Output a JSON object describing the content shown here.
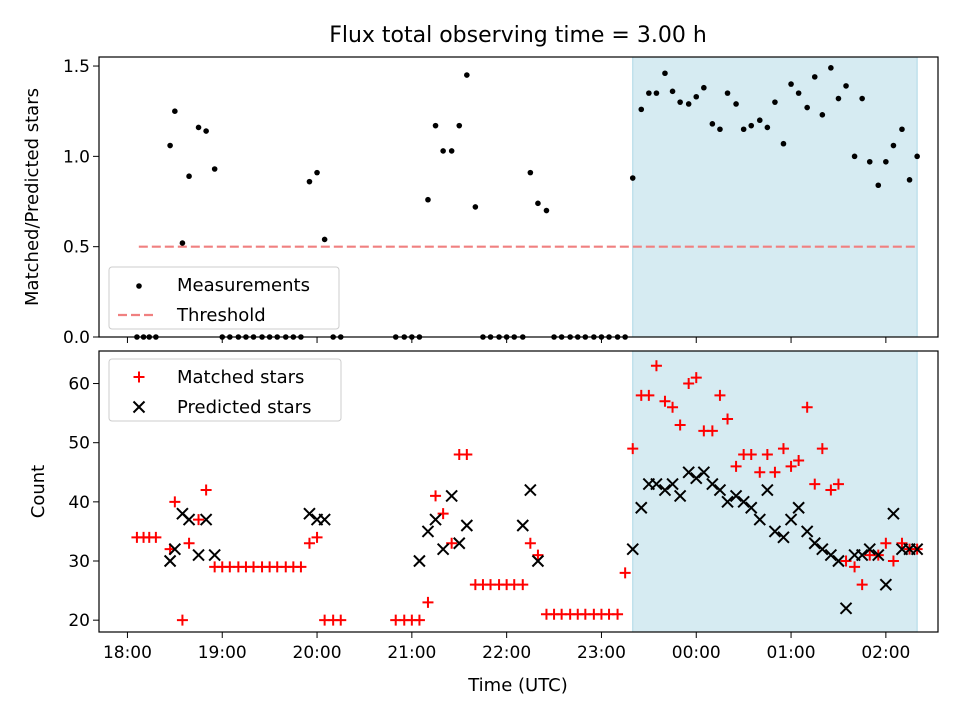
{
  "chart_data": [
    {
      "type": "scatter",
      "title": "Flux total observing time = 3.00 h",
      "ylabel": "Matched/Predicted stars",
      "xlabel": "",
      "ylim": [
        0,
        1.55
      ],
      "yticks": [
        "0.0",
        "0.5",
        "1.0",
        "1.5"
      ],
      "xticks": [
        "18:00",
        "19:00",
        "20:00",
        "21:00",
        "22:00",
        "23:00",
        "00:00",
        "01:00",
        "02:00"
      ],
      "x_range_hours": [
        17.7,
        26.55
      ],
      "highlight_span_hours": [
        23.33,
        26.33
      ],
      "threshold": 0.5,
      "threshold_span_hours": [
        18.12,
        26.33
      ],
      "legend_position": "lower left",
      "series": [
        {
          "name": "Measurements",
          "color": "#000000",
          "marker": "dot",
          "x": [
            18.1,
            18.17,
            18.23,
            18.3,
            18.45,
            18.5,
            18.58,
            18.65,
            18.75,
            18.83,
            18.92,
            19.0,
            19.08,
            19.17,
            19.25,
            19.33,
            19.42,
            19.5,
            19.58,
            19.67,
            19.75,
            19.83,
            19.92,
            20.0,
            20.08,
            20.17,
            20.25,
            20.83,
            20.92,
            21.0,
            21.08,
            21.17,
            21.25,
            21.33,
            21.42,
            21.5,
            21.58,
            21.67,
            21.75,
            21.83,
            21.92,
            22.0,
            22.08,
            22.17,
            22.25,
            22.33,
            22.42,
            22.5,
            22.58,
            22.67,
            22.75,
            22.83,
            22.92,
            23.0,
            23.08,
            23.17,
            23.25,
            23.33,
            23.42,
            23.5,
            23.58,
            23.67,
            23.75,
            23.83,
            23.92,
            24.0,
            24.08,
            24.17,
            24.25,
            24.33,
            24.42,
            24.5,
            24.58,
            24.67,
            24.75,
            24.83,
            24.92,
            25.0,
            25.08,
            25.17,
            25.25,
            25.33,
            25.42,
            25.5,
            25.58,
            25.67,
            25.75,
            25.83,
            25.92,
            26.0,
            26.08,
            26.17,
            26.25,
            26.33
          ],
          "y": [
            0,
            0,
            0,
            0,
            1.06,
            1.25,
            0.52,
            0.89,
            1.16,
            1.14,
            0.93,
            0,
            0,
            0,
            0,
            0,
            0,
            0,
            0,
            0,
            0,
            0,
            0.86,
            0.91,
            0.54,
            0,
            0,
            0,
            0,
            0,
            0,
            0.76,
            1.17,
            1.03,
            1.03,
            1.17,
            1.45,
            0.72,
            0,
            0,
            0,
            0,
            0,
            0,
            0.91,
            0.74,
            0.7,
            0,
            0,
            0,
            0,
            0,
            0,
            0,
            0,
            0,
            0,
            0.88,
            1.26,
            1.35,
            1.35,
            1.46,
            1.36,
            1.3,
            1.29,
            1.33,
            1.38,
            1.18,
            1.15,
            1.35,
            1.29,
            1.15,
            1.17,
            1.2,
            1.16,
            1.3,
            1.07,
            1.4,
            1.35,
            1.27,
            1.44,
            1.23,
            1.49,
            1.32,
            1.39,
            1.0,
            1.32,
            0.97,
            0.84,
            0.97,
            1.06,
            1.15,
            0.87,
            1.0
          ]
        },
        {
          "name": "Threshold",
          "color": "#f08080",
          "style": "dashed"
        }
      ]
    },
    {
      "type": "scatter",
      "title": "",
      "ylabel": "Count",
      "xlabel": "Time (UTC)",
      "ylim": [
        18,
        65.5
      ],
      "yticks": [
        "20",
        "30",
        "40",
        "50",
        "60"
      ],
      "xticks": [
        "18:00",
        "19:00",
        "20:00",
        "21:00",
        "22:00",
        "23:00",
        "00:00",
        "01:00",
        "02:00"
      ],
      "highlight_span_hours": [
        23.33,
        26.33
      ],
      "legend_position": "upper left",
      "series": [
        {
          "name": "Matched stars",
          "color": "#ff0000",
          "marker": "plus",
          "x": [
            18.1,
            18.17,
            18.23,
            18.3,
            18.45,
            18.5,
            18.58,
            18.65,
            18.75,
            18.83,
            18.92,
            19.0,
            19.08,
            19.17,
            19.25,
            19.33,
            19.42,
            19.5,
            19.58,
            19.67,
            19.75,
            19.83,
            19.92,
            20.0,
            20.08,
            20.17,
            20.25,
            20.83,
            20.92,
            21.0,
            21.08,
            21.17,
            21.25,
            21.33,
            21.42,
            21.5,
            21.58,
            21.67,
            21.75,
            21.83,
            21.92,
            22.0,
            22.08,
            22.17,
            22.25,
            22.33,
            22.42,
            22.5,
            22.58,
            22.67,
            22.75,
            22.83,
            22.92,
            23.0,
            23.08,
            23.17,
            23.25,
            23.33,
            23.42,
            23.5,
            23.58,
            23.67,
            23.75,
            23.83,
            23.92,
            24.0,
            24.08,
            24.17,
            24.25,
            24.33,
            24.42,
            24.5,
            24.58,
            24.67,
            24.75,
            24.83,
            24.92,
            25.0,
            25.08,
            25.17,
            25.25,
            25.33,
            25.42,
            25.5,
            25.58,
            25.67,
            25.75,
            25.83,
            25.92,
            26.0,
            26.08,
            26.17,
            26.25,
            26.33
          ],
          "y": [
            34,
            34,
            34,
            34,
            32,
            40,
            20,
            33,
            37,
            42,
            29,
            29,
            29,
            29,
            29,
            29,
            29,
            29,
            29,
            29,
            29,
            29,
            33,
            34,
            20,
            20,
            20,
            20,
            20,
            20,
            20,
            23,
            41,
            38,
            33,
            48,
            48,
            26,
            26,
            26,
            26,
            26,
            26,
            26,
            33,
            31,
            21,
            21,
            21,
            21,
            21,
            21,
            21,
            21,
            21,
            21,
            28,
            49,
            58,
            58,
            63,
            57,
            56,
            53,
            60,
            61,
            52,
            52,
            58,
            54,
            46,
            48,
            48,
            45,
            48,
            45,
            49,
            46,
            47,
            56,
            43,
            49,
            42,
            43,
            30,
            29,
            26,
            31,
            31,
            33,
            30,
            33,
            32,
            32
          ]
        },
        {
          "name": "Predicted stars",
          "color": "#000000",
          "marker": "x",
          "x": [
            18.45,
            18.5,
            18.58,
            18.65,
            18.75,
            18.83,
            18.92,
            19.92,
            20.0,
            20.08,
            21.08,
            21.17,
            21.25,
            21.33,
            21.42,
            21.5,
            21.58,
            22.17,
            22.25,
            22.33,
            23.33,
            23.42,
            23.5,
            23.58,
            23.67,
            23.75,
            23.83,
            23.92,
            24.0,
            24.08,
            24.17,
            24.25,
            24.33,
            24.42,
            24.5,
            24.58,
            24.67,
            24.75,
            24.83,
            24.92,
            25.0,
            25.08,
            25.17,
            25.25,
            25.33,
            25.42,
            25.5,
            25.58,
            25.67,
            25.75,
            25.83,
            25.92,
            26.0,
            26.08,
            26.17,
            26.25,
            26.33
          ],
          "y": [
            30,
            32,
            38,
            37,
            31,
            37,
            31,
            38,
            37,
            37,
            30,
            35,
            37,
            32,
            41,
            33,
            36,
            36,
            42,
            30,
            32,
            39,
            43,
            43,
            42,
            43,
            41,
            45,
            44,
            45,
            43,
            42,
            40,
            41,
            40,
            39,
            37,
            42,
            35,
            34,
            37,
            39,
            35,
            33,
            32,
            31,
            30,
            22,
            31,
            31,
            32,
            31,
            26,
            38,
            32,
            32,
            32
          ]
        }
      ]
    }
  ]
}
